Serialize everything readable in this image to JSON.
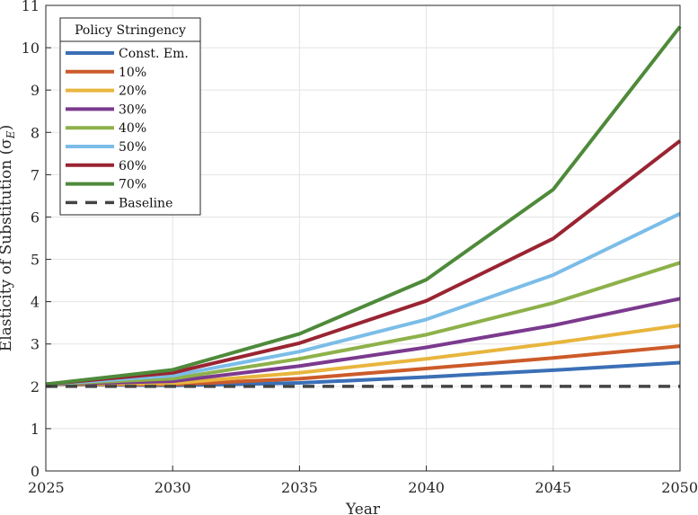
{
  "chart_data": {
    "type": "line",
    "title": "",
    "xlabel": "Year",
    "ylabel": "Elasticity of Substitution (σ",
    "ylabel_sub": "E",
    "ylabel_close": ")",
    "x": [
      2025,
      2030,
      2035,
      2040,
      2045,
      2050
    ],
    "xlim": [
      2025,
      2050
    ],
    "ylim": [
      0,
      11
    ],
    "xticks": [
      "2025",
      "2030",
      "2035",
      "2040",
      "2045",
      "2050"
    ],
    "yticks": [
      "0",
      "1",
      "2",
      "3",
      "4",
      "5",
      "6",
      "7",
      "8",
      "9",
      "10",
      "11"
    ],
    "grid": true,
    "legend": {
      "title": "Policy Stringency",
      "location": "top-left"
    },
    "series": [
      {
        "name": "Const. Em.",
        "color": "#3b6fb6",
        "dash": "solid",
        "values": [
          2.05,
          2.02,
          2.08,
          2.22,
          2.38,
          2.56
        ]
      },
      {
        "name": "10%",
        "color": "#cc5b2a",
        "dash": "solid",
        "values": [
          2.05,
          2.04,
          2.18,
          2.42,
          2.67,
          2.95
        ]
      },
      {
        "name": "20%",
        "color": "#e8b53e",
        "dash": "solid",
        "values": [
          2.05,
          2.07,
          2.32,
          2.65,
          3.02,
          3.44
        ]
      },
      {
        "name": "30%",
        "color": "#7b3a8e",
        "dash": "solid",
        "values": [
          2.05,
          2.12,
          2.48,
          2.92,
          3.44,
          4.07
        ]
      },
      {
        "name": "40%",
        "color": "#8db14a",
        "dash": "solid",
        "values": [
          2.05,
          2.18,
          2.65,
          3.22,
          3.97,
          4.92
        ]
      },
      {
        "name": "50%",
        "color": "#7bbde8",
        "dash": "solid",
        "values": [
          2.05,
          2.25,
          2.82,
          3.58,
          4.63,
          6.08
        ]
      },
      {
        "name": "60%",
        "color": "#9a2432",
        "dash": "solid",
        "values": [
          2.05,
          2.32,
          3.02,
          4.02,
          5.49,
          7.8
        ]
      },
      {
        "name": "70%",
        "color": "#4e8a3a",
        "dash": "solid",
        "values": [
          2.05,
          2.39,
          3.24,
          4.52,
          6.65,
          10.5
        ]
      },
      {
        "name": "Baseline",
        "color": "#444444",
        "dash": "dashed",
        "values": [
          2.0,
          2.0,
          2.0,
          2.0,
          2.0,
          2.0
        ]
      }
    ]
  }
}
